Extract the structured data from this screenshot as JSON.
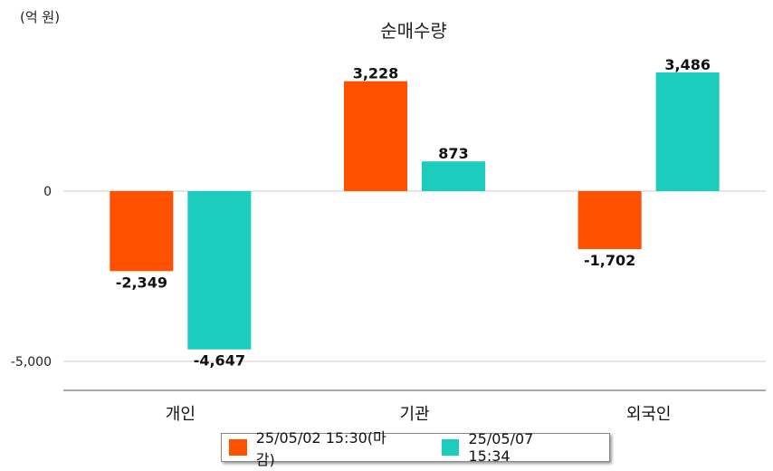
{
  "chart_data": {
    "type": "bar",
    "title": "순매수량",
    "unit_label": "(억 원)",
    "categories": [
      "개인",
      "기관",
      "외국인"
    ],
    "series": [
      {
        "name": "25/05/02 15:30(마감)",
        "color": "#ff5000",
        "values": [
          -2349,
          3228,
          -1702
        ],
        "labels": [
          "-2,349",
          "3,228",
          "-1,702"
        ]
      },
      {
        "name": "25/05/07 15:34",
        "color": "#1ccdbd",
        "values": [
          -4647,
          873,
          3486
        ],
        "labels": [
          "-4,647",
          "873",
          "3,486"
        ]
      }
    ],
    "yticks": [
      0,
      -5000
    ],
    "ytick_labels": [
      "0",
      "-5,000"
    ],
    "ylim": [
      -5800,
      4600
    ],
    "grid": true,
    "legend_position": "bottom-center"
  }
}
